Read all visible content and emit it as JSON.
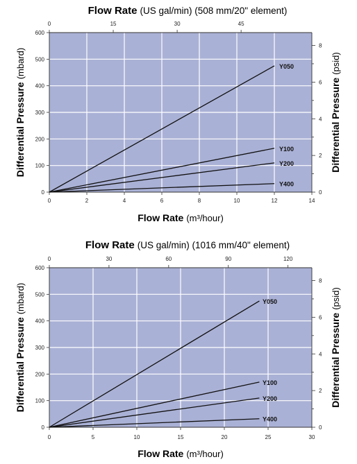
{
  "charts": [
    {
      "id": "chart-20in",
      "top_axis_title_bold": "Flow Rate",
      "top_axis_title_rest": "(US gal/min) (508 mm/20\" element)",
      "x_title_bold": "Flow Rate",
      "x_title_rest": "(m³/hour)",
      "y_left_title_bold": "Differential Pressure",
      "y_left_title_rest": "(mbard)",
      "y_right_title_bold": "Differential Pressure",
      "y_right_title_rest": "(psid)",
      "x_ticks": [
        "0",
        "2",
        "4",
        "6",
        "8",
        "10",
        "12",
        "14"
      ],
      "top_ticks": [
        "0",
        "15",
        "30",
        "45"
      ],
      "y_left_ticks": [
        "0",
        "100",
        "200",
        "300",
        "400",
        "500",
        "600"
      ],
      "y_right_ticks": [
        "0",
        "2",
        "4",
        "6",
        "8"
      ],
      "series_labels": [
        "Y050",
        "Y100",
        "Y200",
        "Y400"
      ]
    },
    {
      "id": "chart-40in",
      "top_axis_title_bold": "Flow Rate",
      "top_axis_title_rest": "(US gal/min) (1016 mm/40\" element)",
      "x_title_bold": "Flow Rate",
      "x_title_rest": "(m³/hour)",
      "y_left_title_bold": "Differential Pressure",
      "y_left_title_rest": "(mbard)",
      "y_right_title_bold": "Differential Pressure",
      "y_right_title_rest": "(psid)",
      "x_ticks": [
        "0",
        "5",
        "10",
        "15",
        "20",
        "25",
        "30"
      ],
      "top_ticks": [
        "0",
        "30",
        "60",
        "90",
        "120"
      ],
      "y_left_ticks": [
        "0",
        "100",
        "200",
        "300",
        "400",
        "500",
        "600"
      ],
      "y_right_ticks": [
        "0",
        "2",
        "4",
        "6",
        "8"
      ],
      "series_labels": [
        "Y050",
        "Y100",
        "Y200",
        "Y400"
      ]
    }
  ],
  "chart_data": [
    {
      "type": "line",
      "title": "Flow Rate (US gal/min) (508 mm/20\" element)",
      "xlabel": "Flow Rate (m³/hour)",
      "ylabel": "Differential Pressure (mbard)",
      "y2label": "Differential Pressure (psid)",
      "x2label": "Flow Rate (US gal/min)",
      "xlim": [
        0,
        14
      ],
      "ylim": [
        0,
        600
      ],
      "x2lim": [
        0,
        61.6
      ],
      "y2lim": [
        0,
        8.7
      ],
      "grid": true,
      "colors": {
        "plot_bg": "#aab1d6",
        "grid": "#ffffff",
        "line": "#111111"
      },
      "series": [
        {
          "name": "Y050",
          "x": [
            0,
            12
          ],
          "y": [
            0,
            475
          ]
        },
        {
          "name": "Y100",
          "x": [
            0,
            12
          ],
          "y": [
            0,
            165
          ]
        },
        {
          "name": "Y200",
          "x": [
            0,
            12
          ],
          "y": [
            0,
            110
          ]
        },
        {
          "name": "Y400",
          "x": [
            0,
            12
          ],
          "y": [
            0,
            32
          ]
        }
      ]
    },
    {
      "type": "line",
      "title": "Flow Rate (US gal/min) (1016 mm/40\" element)",
      "xlabel": "Flow Rate (m³/hour)",
      "ylabel": "Differential Pressure (mbard)",
      "y2label": "Differential Pressure (psid)",
      "x2label": "Flow Rate (US gal/min)",
      "xlim": [
        0,
        30
      ],
      "ylim": [
        0,
        600
      ],
      "x2lim": [
        0,
        132
      ],
      "y2lim": [
        0,
        8.7
      ],
      "grid": true,
      "colors": {
        "plot_bg": "#aab1d6",
        "grid": "#ffffff",
        "line": "#111111"
      },
      "series": [
        {
          "name": "Y050",
          "x": [
            0,
            24
          ],
          "y": [
            0,
            475
          ]
        },
        {
          "name": "Y100",
          "x": [
            0,
            24
          ],
          "y": [
            0,
            170
          ]
        },
        {
          "name": "Y200",
          "x": [
            0,
            24
          ],
          "y": [
            0,
            110
          ]
        },
        {
          "name": "Y400",
          "x": [
            0,
            24
          ],
          "y": [
            0,
            32
          ]
        }
      ]
    }
  ]
}
